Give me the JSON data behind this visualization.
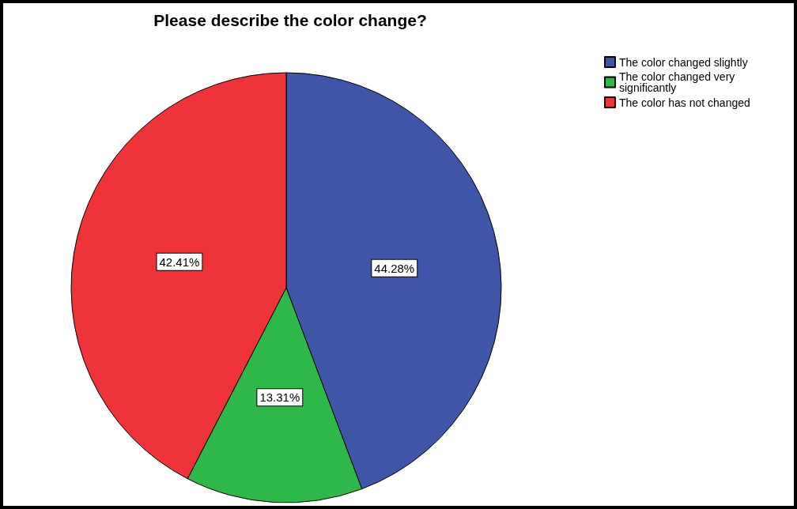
{
  "chart_data": {
    "type": "pie",
    "title": "Please describe the color change?",
    "categories": [
      "The color changed slightly",
      "The color changed very significantly",
      "The color has not changed"
    ],
    "values": [
      44.28,
      13.31,
      42.41
    ],
    "colors": [
      "#3f56a8",
      "#2fb84a",
      "#ef3439"
    ],
    "value_labels": [
      "44.28%",
      "13.31%",
      "42.41%"
    ],
    "legend": "top right"
  }
}
